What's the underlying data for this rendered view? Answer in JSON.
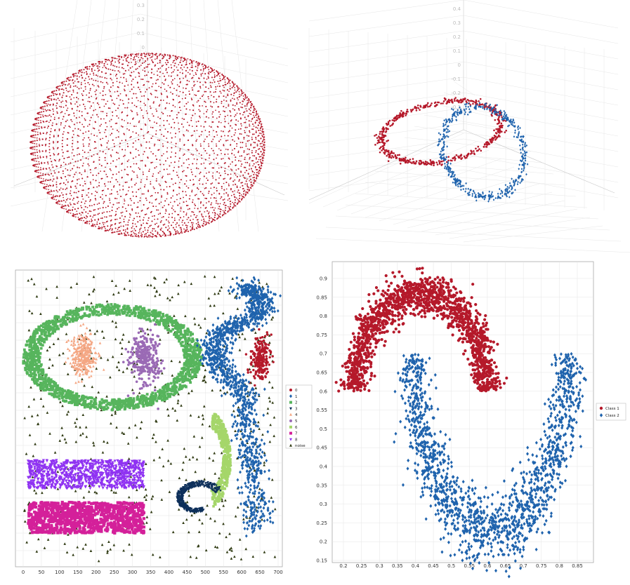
{
  "colors": {
    "red": "#b5192a",
    "blue": "#1f63ad",
    "green": "#57b55d",
    "salmon": "#f4a683",
    "purple": "#9a6ab5",
    "navy": "#0d2f5a",
    "lightgreen": "#a5d66a",
    "violet": "#8f33f2",
    "magenta": "#d4209a",
    "olive": "#2f3a12",
    "grid": "#e5e5e5",
    "frame": "#a8a8a8"
  },
  "chart_data": [
    {
      "type": "scatter",
      "subtype": "3d",
      "description_shape": "sphere",
      "series": [
        {
          "name": "",
          "color": "red",
          "marker": "circle",
          "shape": "sphere",
          "center": [
            0,
            0,
            0
          ],
          "radius": 1
        }
      ],
      "axis_tick_labels": [
        "0.3",
        "0.2",
        "0.1",
        "0",
        "-0.1"
      ],
      "grid": true
    },
    {
      "type": "scatter",
      "subtype": "3d",
      "description_shape": "two interlocking rings",
      "series": [
        {
          "name": "",
          "color": "red",
          "marker": "circle",
          "shape": "ring"
        },
        {
          "name": "",
          "color": "blue",
          "marker": "diamond",
          "shape": "ring"
        }
      ],
      "axis_tick_labels": [
        "0.4",
        "0.3",
        "0.2",
        "0.1",
        "0",
        "-0.1",
        "-0.2",
        "-0.3"
      ],
      "grid": true
    },
    {
      "type": "scatter",
      "xlim": [
        0,
        700
      ],
      "x_ticks": [
        "0",
        "50",
        "100",
        "150",
        "200",
        "250",
        "300",
        "350",
        "400",
        "450",
        "500",
        "550",
        "600",
        "650",
        "700"
      ],
      "grid": true,
      "legend_position": "right",
      "series": [
        {
          "name": "0",
          "color": "red",
          "marker": "circle",
          "shape": "blob",
          "center": [
            645,
            555
          ]
        },
        {
          "name": "1",
          "color": "blue",
          "marker": "diamond",
          "shape": "s-curve"
        },
        {
          "name": "2",
          "color": "green",
          "marker": "square",
          "shape": "ellipse-ring",
          "center": [
            205,
            550
          ]
        },
        {
          "name": "3",
          "color": "navy",
          "marker": "triangle-down",
          "shape": "spiral",
          "center": [
            475,
            155
          ]
        },
        {
          "name": "4",
          "color": "salmon",
          "marker": "triangle-up",
          "shape": "blob",
          "center": [
            150,
            540
          ]
        },
        {
          "name": "5",
          "color": "purple",
          "marker": "circle",
          "shape": "blob",
          "center": [
            285,
            535
          ]
        },
        {
          "name": "6",
          "color": "lightgreen",
          "marker": "square",
          "shape": "arc",
          "center": [
            535,
            270
          ]
        },
        {
          "name": "7",
          "color": "magenta",
          "marker": "square",
          "shape": "rectangle",
          "x": [
            20,
            335
          ],
          "y": [
            35,
            130
          ]
        },
        {
          "name": "8",
          "color": "violet",
          "marker": "triangle-down",
          "shape": "rectangle",
          "x": [
            20,
            335
          ],
          "y": [
            190,
            275
          ]
        },
        {
          "name": "noise",
          "color": "olive",
          "marker": "triangle-up",
          "shape": "uniform"
        }
      ]
    },
    {
      "type": "scatter",
      "xlim": [
        0.15,
        0.88
      ],
      "ylim": [
        0.15,
        0.93
      ],
      "x_ticks": [
        "0.2",
        "0.25",
        "0.3",
        "0.35",
        "0.4",
        "0.45",
        "0.5",
        "0.55",
        "0.6",
        "0.65",
        "0.7",
        "0.75",
        "0.8",
        "0.85"
      ],
      "y_ticks": [
        "0.15",
        "0.2",
        "0.25",
        "0.3",
        "0.35",
        "0.4",
        "0.45",
        "0.5",
        "0.55",
        "0.6",
        "0.65",
        "0.7",
        "0.75",
        "0.8",
        "0.85",
        "0.9"
      ],
      "grid": true,
      "legend_position": "right",
      "series": [
        {
          "name": "Class 1",
          "color": "red",
          "marker": "circle",
          "shape": "upper-moon",
          "center": [
            0.42,
            0.58
          ],
          "radius": 0.2
        },
        {
          "name": "Class 2",
          "color": "blue",
          "marker": "diamond",
          "shape": "lower-moon",
          "center": [
            0.615,
            0.68
          ],
          "radius": 0.21
        }
      ]
    }
  ]
}
